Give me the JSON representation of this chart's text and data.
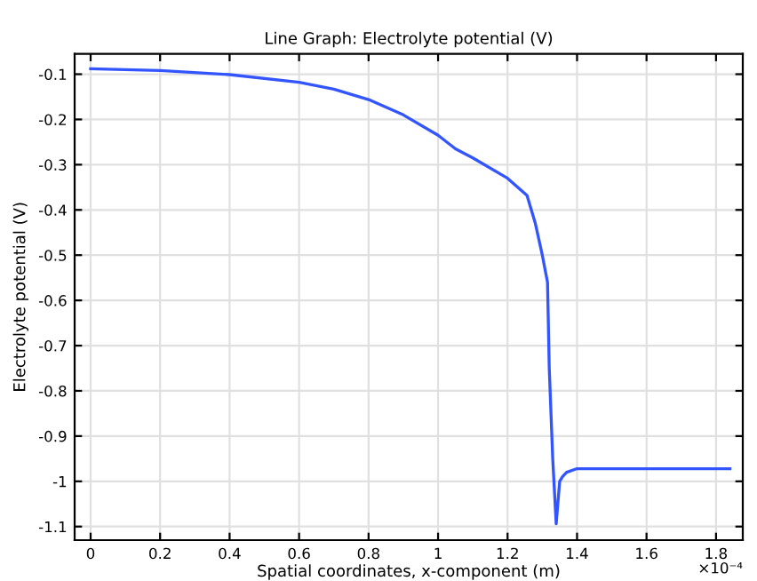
{
  "chart_data": {
    "type": "line",
    "title": "Line Graph: Electrolyte potential (V)",
    "xlabel": "Spatial coordinates, x-component (m)",
    "ylabel": "Electrolyte potential (V)",
    "annotations": [
      "×10⁻⁴"
    ],
    "series": [
      {
        "color": "#3355ff",
        "x": [
          0,
          0.2,
          0.4,
          0.6,
          0.7,
          0.8,
          0.9,
          1.0,
          1.05,
          1.1,
          1.2,
          1.256,
          1.28,
          1.3,
          1.315,
          1.32,
          1.33,
          1.34,
          1.35,
          1.358,
          1.37,
          1.4,
          1.84
        ],
        "values": [
          -0.088,
          -0.092,
          -0.101,
          -0.118,
          -0.133,
          -0.156,
          -0.19,
          -0.235,
          -0.265,
          -0.285,
          -0.33,
          -0.368,
          -0.43,
          -0.5,
          -0.56,
          -0.75,
          -0.95,
          -1.094,
          -1.0,
          -0.99,
          -0.98,
          -0.972,
          -0.972
        ]
      }
    ],
    "xlim": [
      -0.046,
      1.877
    ],
    "ylim": [
      -1.13,
      -0.055
    ],
    "xticks": [
      0,
      0.2,
      0.4,
      0.6,
      0.8,
      1,
      1.2,
      1.4,
      1.6,
      1.8
    ],
    "yticks": [
      -0.1,
      -0.2,
      -0.3,
      -0.4,
      -0.5,
      -0.6,
      -0.7,
      -0.8,
      -0.9,
      -1,
      -1.1
    ],
    "grid": true,
    "legend": false
  }
}
